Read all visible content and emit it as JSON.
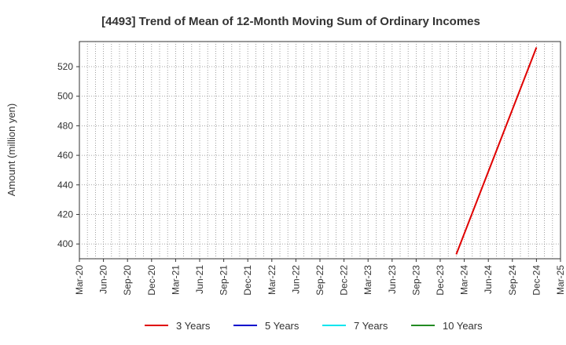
{
  "chart_data": {
    "type": "line",
    "title": "[4493]  Trend of Mean of 12-Month Moving Sum of Ordinary Incomes",
    "ylabel": "Amount (million yen)",
    "xlabel": "",
    "x_ticks": [
      "Mar-20",
      "Jun-20",
      "Sep-20",
      "Dec-20",
      "Mar-21",
      "Jun-21",
      "Sep-21",
      "Dec-21",
      "Mar-22",
      "Jun-22",
      "Sep-22",
      "Dec-22",
      "Mar-23",
      "Jun-23",
      "Sep-23",
      "Dec-23",
      "Mar-24",
      "Jun-24",
      "Sep-24",
      "Dec-24",
      "Mar-25"
    ],
    "y_ticks": [
      400,
      420,
      440,
      460,
      480,
      500,
      520
    ],
    "ylim": [
      390,
      537
    ],
    "grid": true,
    "legend_position": "bottom",
    "series": [
      {
        "name": "3 Years",
        "color": "#e00000",
        "points": [
          {
            "x": "Feb-24",
            "y": 393
          },
          {
            "x": "Dec-24",
            "y": 533
          }
        ]
      },
      {
        "name": "5 Years",
        "color": "#0000cc",
        "points": []
      },
      {
        "name": "7 Years",
        "color": "#00e5ee",
        "points": []
      },
      {
        "name": "10 Years",
        "color": "#228b22",
        "points": []
      }
    ]
  }
}
